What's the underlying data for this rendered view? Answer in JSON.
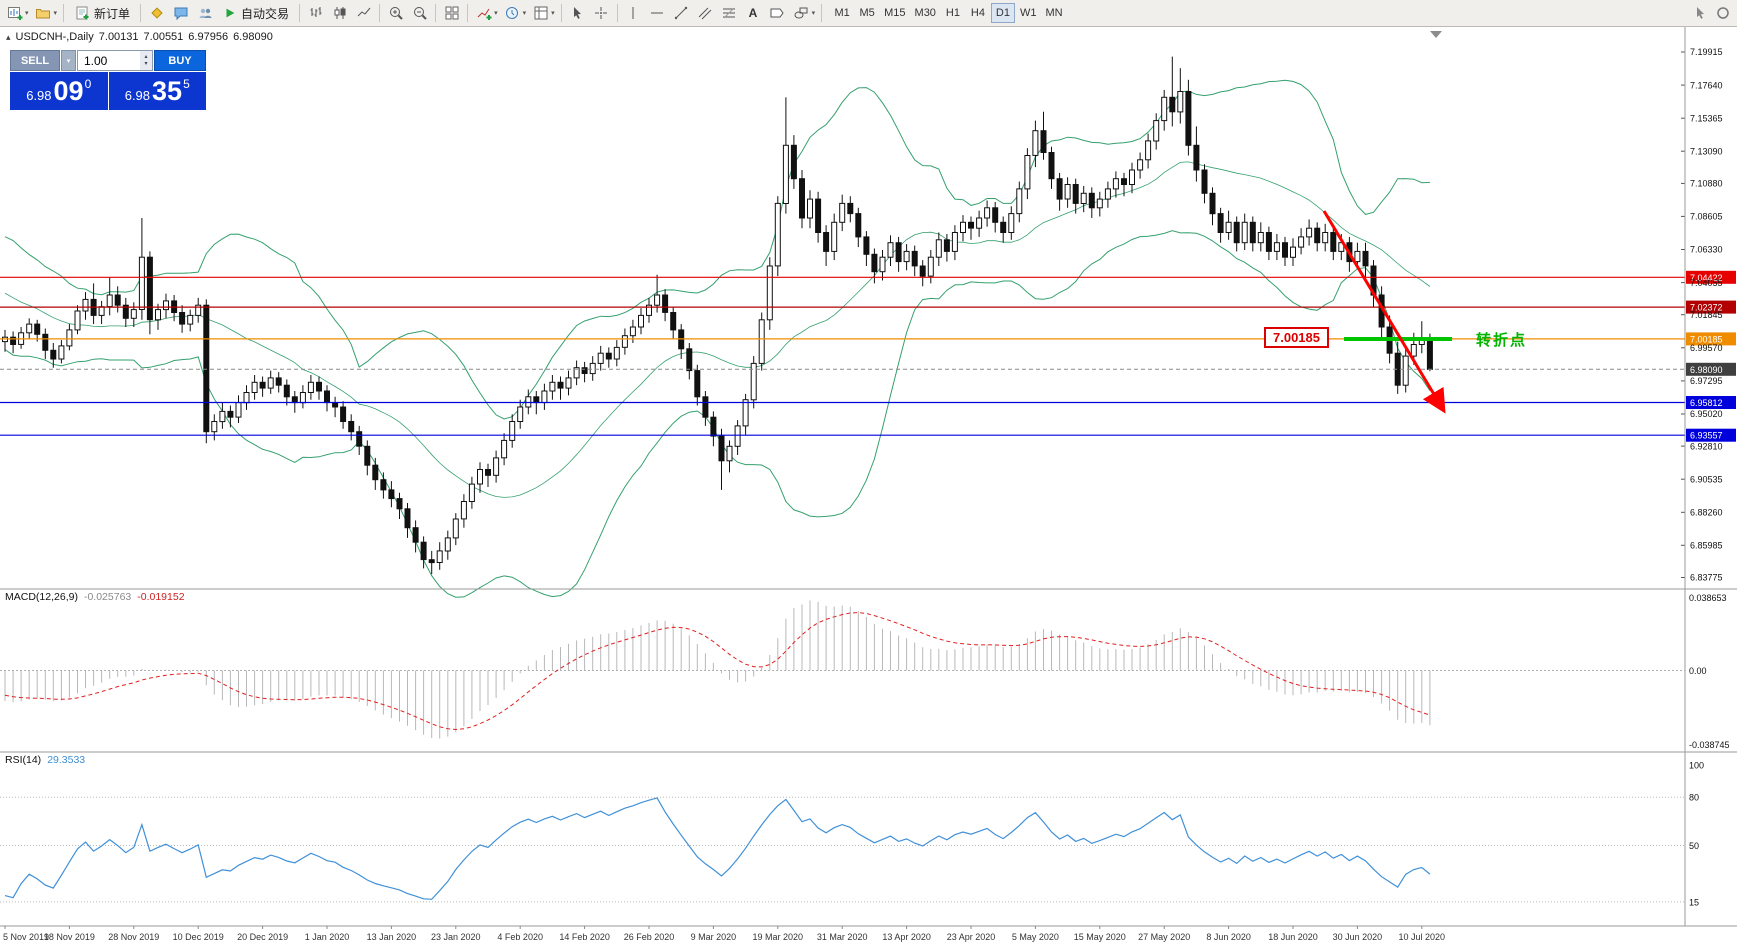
{
  "toolbar": {
    "new_order_label": "新订单",
    "autotrading_label": "自动交易",
    "timeframes": [
      "M1",
      "M5",
      "M15",
      "M30",
      "H1",
      "H4",
      "D1",
      "W1",
      "MN"
    ],
    "active_timeframe": "D1"
  },
  "chart": {
    "title": "USDCNH-,Daily",
    "ohlc": {
      "open": "7.00131",
      "high": "7.00551",
      "low": "6.97956",
      "close": "6.98090"
    }
  },
  "trade_panel": {
    "sell_label": "SELL",
    "buy_label": "BUY",
    "volume": "1.00",
    "bid": {
      "base": "6.98",
      "pips": "09",
      "point": "0"
    },
    "ask": {
      "base": "6.98",
      "pips": "35",
      "point": "5"
    }
  },
  "indicators": {
    "macd": {
      "label": "MACD(12,26,9)",
      "value_main": "-0.025763",
      "value_signal": "-0.019152",
      "scale": [
        "0.038653",
        "0.00",
        "-0.038745"
      ]
    },
    "rsi": {
      "label": "RSI(14)",
      "value": "29.3533",
      "scale": [
        "100",
        "80",
        "50",
        "15"
      ],
      "levels": [
        80,
        50,
        15
      ]
    }
  },
  "annotations": {
    "price_tag": "7.00185",
    "turning_point": "转折点"
  },
  "chart_data": {
    "type": "candlestick",
    "symbol": "USDCNH-",
    "period": "Daily",
    "y_axis_labels": [
      7.19915,
      7.1764,
      7.15365,
      7.1309,
      7.1088,
      7.08605,
      7.0633,
      7.04055,
      7.01845,
      6.9957,
      6.97295,
      6.9502,
      6.9281,
      6.90535,
      6.8826,
      6.85985,
      6.83775
    ],
    "levels": [
      {
        "value": 7.04422,
        "color": "#e60000",
        "style": "solid"
      },
      {
        "value": 7.02372,
        "color": "#b30000",
        "style": "solid"
      },
      {
        "value": 7.00185,
        "color": "#f08c00",
        "style": "solid"
      },
      {
        "value": 6.9809,
        "color": "#8a8a8a",
        "style": "dash",
        "label_bg": "#3f3f3f"
      },
      {
        "value": 6.95812,
        "color": "#0000dc",
        "style": "solid"
      },
      {
        "value": 6.93557,
        "color": "#0000dc",
        "style": "solid"
      }
    ],
    "date_labels": [
      "5 Nov 2019",
      "18 Nov 2019",
      "28 Nov 2019",
      "10 Dec 2019",
      "20 Dec 2019",
      "1 Jan 2020",
      "13 Jan 2020",
      "23 Jan 2020",
      "4 Feb 2020",
      "14 Feb 2020",
      "26 Feb 2020",
      "9 Mar 2020",
      "19 Mar 2020",
      "31 Mar 2020",
      "13 Apr 2020",
      "23 Apr 2020",
      "5 May 2020",
      "15 May 2020",
      "27 May 2020",
      "8 Jun 2020",
      "18 Jun 2020",
      "30 Jun 2020",
      "10 Jul 2020"
    ],
    "prehistory_closes": [
      7.068,
      7.062,
      7.065,
      7.058,
      7.052,
      7.056,
      7.048,
      7.042,
      7.045,
      7.038,
      7.032,
      7.035,
      7.028,
      7.022,
      7.025,
      7.018,
      7.012,
      7.015,
      7.008,
      7.002
    ],
    "candles": [
      [
        7.0,
        7.008,
        6.993,
        7.003
      ],
      [
        7.003,
        7.007,
        6.992,
        6.998
      ],
      [
        6.998,
        7.01,
        6.995,
        7.006
      ],
      [
        7.006,
        7.016,
        7.002,
        7.012
      ],
      [
        7.012,
        7.015,
        7.0,
        7.005
      ],
      [
        7.005,
        7.009,
        6.988,
        6.994
      ],
      [
        6.994,
        6.999,
        6.982,
        6.988
      ],
      [
        6.988,
        7.001,
        6.985,
        6.997
      ],
      [
        6.997,
        7.012,
        6.994,
        7.008
      ],
      [
        7.008,
        7.025,
        7.005,
        7.021
      ],
      [
        7.021,
        7.034,
        7.015,
        7.029
      ],
      [
        7.029,
        7.04,
        7.012,
        7.018
      ],
      [
        7.018,
        7.028,
        7.012,
        7.024
      ],
      [
        7.024,
        7.044,
        7.018,
        7.032
      ],
      [
        7.032,
        7.038,
        7.02,
        7.025
      ],
      [
        7.025,
        7.03,
        7.01,
        7.016
      ],
      [
        7.016,
        7.027,
        7.01,
        7.022
      ],
      [
        7.022,
        7.085,
        7.015,
        7.058
      ],
      [
        7.058,
        7.062,
        7.005,
        7.015
      ],
      [
        7.015,
        7.026,
        7.008,
        7.022
      ],
      [
        7.022,
        7.033,
        7.016,
        7.028
      ],
      [
        7.028,
        7.032,
        7.014,
        7.02
      ],
      [
        7.02,
        7.025,
        7.006,
        7.012
      ],
      [
        7.012,
        7.022,
        7.007,
        7.018
      ],
      [
        7.018,
        7.03,
        7.013,
        7.025
      ],
      [
        7.025,
        7.029,
        6.93,
        6.938
      ],
      [
        6.938,
        6.95,
        6.932,
        6.945
      ],
      [
        6.945,
        6.958,
        6.94,
        6.952
      ],
      [
        6.952,
        6.956,
        6.941,
        6.948
      ],
      [
        6.948,
        6.963,
        6.944,
        6.958
      ],
      [
        6.958,
        6.97,
        6.953,
        6.965
      ],
      [
        6.965,
        6.977,
        6.96,
        6.972
      ],
      [
        6.972,
        6.976,
        6.962,
        6.968
      ],
      [
        6.968,
        6.98,
        6.964,
        6.975
      ],
      [
        6.975,
        6.979,
        6.965,
        6.97
      ],
      [
        6.97,
        6.974,
        6.956,
        6.962
      ],
      [
        6.962,
        6.966,
        6.951,
        6.958
      ],
      [
        6.958,
        6.97,
        6.954,
        6.965
      ],
      [
        6.965,
        6.977,
        6.96,
        6.972
      ],
      [
        6.972,
        6.976,
        6.96,
        6.966
      ],
      [
        6.966,
        6.97,
        6.952,
        6.958
      ],
      [
        6.958,
        6.962,
        6.948,
        6.955
      ],
      [
        6.955,
        6.959,
        6.94,
        6.945
      ],
      [
        6.945,
        6.95,
        6.932,
        6.938
      ],
      [
        6.938,
        6.942,
        6.922,
        6.928
      ],
      [
        6.928,
        6.932,
        6.908,
        6.915
      ],
      [
        6.915,
        6.92,
        6.898,
        6.905
      ],
      [
        6.905,
        6.91,
        6.892,
        6.898
      ],
      [
        6.898,
        6.904,
        6.886,
        6.892
      ],
      [
        6.892,
        6.896,
        6.878,
        6.885
      ],
      [
        6.885,
        6.889,
        6.865,
        6.872
      ],
      [
        6.872,
        6.877,
        6.855,
        6.862
      ],
      [
        6.862,
        6.866,
        6.844,
        6.85
      ],
      [
        6.85,
        6.856,
        6.84,
        6.848
      ],
      [
        6.848,
        6.862,
        6.843,
        6.856
      ],
      [
        6.856,
        6.87,
        6.85,
        6.865
      ],
      [
        6.865,
        6.882,
        6.86,
        6.878
      ],
      [
        6.878,
        6.895,
        6.872,
        6.89
      ],
      [
        6.89,
        6.907,
        6.885,
        6.902
      ],
      [
        6.902,
        6.917,
        6.896,
        6.912
      ],
      [
        6.912,
        6.916,
        6.9,
        6.908
      ],
      [
        6.908,
        6.925,
        6.903,
        6.92
      ],
      [
        6.92,
        6.937,
        6.915,
        6.932
      ],
      [
        6.932,
        6.95,
        6.927,
        6.945
      ],
      [
        6.945,
        6.96,
        6.94,
        6.955
      ],
      [
        6.955,
        6.967,
        6.95,
        6.962
      ],
      [
        6.962,
        6.966,
        6.95,
        6.958
      ],
      [
        6.958,
        6.971,
        6.953,
        6.966
      ],
      [
        6.966,
        6.977,
        6.96,
        6.972
      ],
      [
        6.972,
        6.976,
        6.96,
        6.968
      ],
      [
        6.968,
        6.98,
        6.963,
        6.975
      ],
      [
        6.975,
        6.987,
        6.97,
        6.982
      ],
      [
        6.982,
        6.986,
        6.972,
        6.978
      ],
      [
        6.978,
        6.99,
        6.973,
        6.985
      ],
      [
        6.985,
        6.997,
        6.98,
        6.992
      ],
      [
        6.992,
        6.996,
        6.982,
        6.988
      ],
      [
        6.988,
        7.001,
        6.983,
        6.996
      ],
      [
        6.996,
        7.009,
        6.991,
        7.004
      ],
      [
        7.004,
        7.015,
        6.999,
        7.01
      ],
      [
        7.01,
        7.023,
        7.005,
        7.018
      ],
      [
        7.018,
        7.03,
        7.013,
        7.025
      ],
      [
        7.025,
        7.046,
        7.02,
        7.032
      ],
      [
        7.032,
        7.036,
        7.014,
        7.02
      ],
      [
        7.02,
        7.024,
        7.002,
        7.008
      ],
      [
        7.008,
        7.012,
        6.988,
        6.995
      ],
      [
        6.995,
        6.999,
        6.974,
        6.98
      ],
      [
        6.98,
        6.984,
        6.956,
        6.962
      ],
      [
        6.962,
        6.966,
        6.942,
        6.948
      ],
      [
        6.948,
        6.952,
        6.928,
        6.935
      ],
      [
        6.935,
        6.94,
        6.898,
        6.918
      ],
      [
        6.918,
        6.932,
        6.91,
        6.928
      ],
      [
        6.928,
        6.946,
        6.922,
        6.942
      ],
      [
        6.942,
        6.964,
        6.936,
        6.96
      ],
      [
        6.96,
        6.99,
        6.954,
        6.985
      ],
      [
        6.985,
        7.02,
        6.98,
        7.015
      ],
      [
        7.015,
        7.058,
        7.008,
        7.052
      ],
      [
        7.052,
        7.1,
        7.045,
        7.095
      ],
      [
        7.095,
        7.168,
        7.088,
        7.135
      ],
      [
        7.135,
        7.142,
        7.105,
        7.112
      ],
      [
        7.112,
        7.118,
        7.078,
        7.085
      ],
      [
        7.085,
        7.104,
        7.078,
        7.098
      ],
      [
        7.098,
        7.103,
        7.068,
        7.075
      ],
      [
        7.075,
        7.08,
        7.052,
        7.062
      ],
      [
        7.062,
        7.088,
        7.056,
        7.082
      ],
      [
        7.082,
        7.101,
        7.076,
        7.095
      ],
      [
        7.095,
        7.1,
        7.082,
        7.088
      ],
      [
        7.088,
        7.092,
        7.065,
        7.072
      ],
      [
        7.072,
        7.076,
        7.052,
        7.06
      ],
      [
        7.06,
        7.064,
        7.04,
        7.048
      ],
      [
        7.048,
        7.063,
        7.042,
        7.058
      ],
      [
        7.058,
        7.073,
        7.052,
        7.068
      ],
      [
        7.068,
        7.072,
        7.048,
        7.055
      ],
      [
        7.055,
        7.067,
        7.049,
        7.062
      ],
      [
        7.062,
        7.066,
        7.045,
        7.052
      ],
      [
        7.052,
        7.056,
        7.038,
        7.045
      ],
      [
        7.045,
        7.063,
        7.04,
        7.058
      ],
      [
        7.058,
        7.075,
        7.052,
        7.07
      ],
      [
        7.07,
        7.074,
        7.055,
        7.062
      ],
      [
        7.062,
        7.08,
        7.056,
        7.075
      ],
      [
        7.075,
        7.087,
        7.069,
        7.082
      ],
      [
        7.082,
        7.086,
        7.07,
        7.078
      ],
      [
        7.078,
        7.09,
        7.072,
        7.085
      ],
      [
        7.085,
        7.097,
        7.079,
        7.092
      ],
      [
        7.092,
        7.096,
        7.075,
        7.082
      ],
      [
        7.082,
        7.086,
        7.068,
        7.075
      ],
      [
        7.075,
        7.093,
        7.07,
        7.088
      ],
      [
        7.088,
        7.11,
        7.082,
        7.105
      ],
      [
        7.105,
        7.133,
        7.098,
        7.128
      ],
      [
        7.128,
        7.152,
        7.12,
        7.145
      ],
      [
        7.145,
        7.158,
        7.125,
        7.13
      ],
      [
        7.13,
        7.134,
        7.105,
        7.112
      ],
      [
        7.112,
        7.116,
        7.09,
        7.098
      ],
      [
        7.098,
        7.113,
        7.092,
        7.108
      ],
      [
        7.108,
        7.112,
        7.088,
        7.095
      ],
      [
        7.095,
        7.107,
        7.089,
        7.102
      ],
      [
        7.102,
        7.106,
        7.085,
        7.092
      ],
      [
        7.092,
        7.103,
        7.086,
        7.098
      ],
      [
        7.098,
        7.11,
        7.092,
        7.105
      ],
      [
        7.105,
        7.117,
        7.099,
        7.112
      ],
      [
        7.112,
        7.116,
        7.1,
        7.108
      ],
      [
        7.108,
        7.123,
        7.102,
        7.118
      ],
      [
        7.118,
        7.13,
        7.112,
        7.125
      ],
      [
        7.125,
        7.143,
        7.119,
        7.138
      ],
      [
        7.138,
        7.157,
        7.132,
        7.152
      ],
      [
        7.152,
        7.173,
        7.145,
        7.168
      ],
      [
        7.168,
        7.196,
        7.148,
        7.158
      ],
      [
        7.158,
        7.188,
        7.15,
        7.172
      ],
      [
        7.172,
        7.18,
        7.128,
        7.135
      ],
      [
        7.135,
        7.148,
        7.11,
        7.118
      ],
      [
        7.118,
        7.122,
        7.095,
        7.102
      ],
      [
        7.102,
        7.106,
        7.08,
        7.088
      ],
      [
        7.088,
        7.092,
        7.068,
        7.075
      ],
      [
        7.075,
        7.09,
        7.07,
        7.082
      ],
      [
        7.082,
        7.086,
        7.062,
        7.068
      ],
      [
        7.068,
        7.088,
        7.063,
        7.082
      ],
      [
        7.082,
        7.086,
        7.062,
        7.068
      ],
      [
        7.068,
        7.082,
        7.062,
        7.075
      ],
      [
        7.075,
        7.079,
        7.056,
        7.062
      ],
      [
        7.062,
        7.074,
        7.056,
        7.068
      ],
      [
        7.068,
        7.072,
        7.052,
        7.058
      ],
      [
        7.058,
        7.071,
        7.052,
        7.065
      ],
      [
        7.065,
        7.078,
        7.06,
        7.072
      ],
      [
        7.072,
        7.084,
        7.066,
        7.078
      ],
      [
        7.078,
        7.082,
        7.062,
        7.068
      ],
      [
        7.068,
        7.081,
        7.062,
        7.075
      ],
      [
        7.075,
        7.079,
        7.056,
        7.062
      ],
      [
        7.062,
        7.074,
        7.056,
        7.068
      ],
      [
        7.068,
        7.072,
        7.048,
        7.055
      ],
      [
        7.055,
        7.068,
        7.05,
        7.062
      ],
      [
        7.062,
        7.068,
        7.044,
        7.052
      ],
      [
        7.052,
        7.056,
        7.024,
        7.032
      ],
      [
        7.032,
        7.038,
        7.002,
        7.01
      ],
      [
        7.01,
        7.018,
        6.985,
        6.992
      ],
      [
        6.992,
        7.0,
        6.964,
        6.97
      ],
      [
        6.97,
        6.996,
        6.965,
        6.99
      ],
      [
        6.99,
        7.006,
        6.984,
        6.998
      ],
      [
        6.998,
        7.014,
        6.992,
        7.0013
      ],
      [
        7.0013,
        7.0055,
        6.9796,
        6.9809
      ]
    ],
    "colors": {
      "bollinger": "#35a06e",
      "macd_hist": "#b8b8b8",
      "macd_signal": "#e02020",
      "rsi": "#4090d8",
      "bull": "#ffffff",
      "bear": "#111111",
      "annotation_green": "#00c400",
      "annotation_red": "#ff0000"
    }
  }
}
